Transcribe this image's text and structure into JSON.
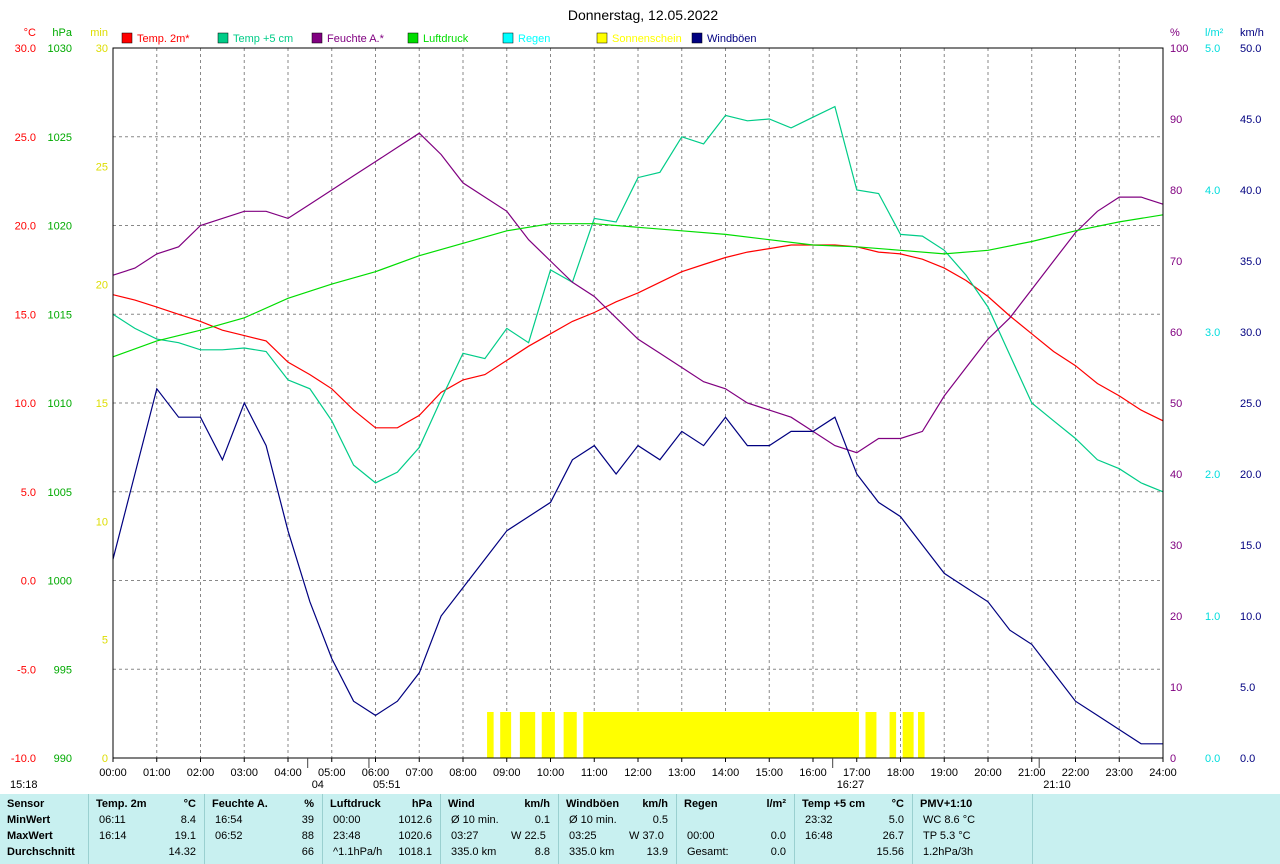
{
  "chart_data": {
    "type": "line",
    "title": "Donnerstag, 12.05.2022",
    "x_ticks": [
      "00:00",
      "01:00",
      "02:00",
      "03:00",
      "04:00",
      "05:00",
      "06:00",
      "07:00",
      "08:00",
      "09:00",
      "10:00",
      "11:00",
      "12:00",
      "13:00",
      "14:00",
      "15:00",
      "16:00",
      "17:00",
      "18:00",
      "19:00",
      "20:00",
      "21:00",
      "22:00",
      "23:00",
      "24:00"
    ],
    "axes": {
      "temp": {
        "unit": "°C",
        "range": [
          -10,
          30
        ],
        "ticks": [
          "30.0",
          "25.0",
          "20.0",
          "15.0",
          "10.0",
          "5.0",
          "0.0",
          "-5.0",
          "-10.0"
        ],
        "color": "#ff0000"
      },
      "pressure": {
        "unit": "hPa",
        "range": [
          990,
          1030
        ],
        "ticks": [
          "1030",
          "1025",
          "1020",
          "1015",
          "1010",
          "1005",
          "1000",
          "995",
          "990"
        ],
        "color": "#00aa00"
      },
      "sun_minutes": {
        "unit": "min",
        "range": [
          0,
          30
        ],
        "ticks": [
          "30",
          "25",
          "20",
          "15",
          "10",
          "5",
          "0"
        ],
        "color": "#dddd00"
      },
      "humidity": {
        "unit": "%",
        "range": [
          0,
          100
        ],
        "ticks": [
          "100",
          "90",
          "80",
          "70",
          "60",
          "50",
          "40",
          "30",
          "20",
          "10",
          "0"
        ],
        "color": "#800080"
      },
      "rain": {
        "unit": "l/m²",
        "range": [
          0,
          5
        ],
        "ticks": [
          "5.0",
          "4.0",
          "3.0",
          "2.0",
          "1.0",
          "0.0"
        ],
        "color": "#00dddd"
      },
      "wind": {
        "unit": "km/h",
        "range": [
          0,
          50
        ],
        "ticks": [
          "50.0",
          "45.0",
          "40.0",
          "35.0",
          "30.0",
          "25.0",
          "20.0",
          "15.0",
          "10.0",
          "5.0",
          "0.0"
        ],
        "color": "#000080"
      }
    },
    "legend": [
      {
        "name": "Temp. 2m*",
        "color": "#ff0000"
      },
      {
        "name": "Temp +5 cm",
        "color": "#00cc88"
      },
      {
        "name": "Feuchte A.*",
        "color": "#800080"
      },
      {
        "name": "Luftdruck",
        "color": "#00dd00"
      },
      {
        "name": "Regen",
        "color": "#00ffff"
      },
      {
        "name": "Sonnenschein",
        "color": "#ffff00"
      },
      {
        "name": "Windböen",
        "color": "#000080"
      }
    ],
    "series": [
      {
        "name": "Temp. 2m*",
        "axis": "temp",
        "x": [
          0,
          0.5,
          1,
          1.5,
          2,
          2.5,
          3,
          3.5,
          4,
          4.5,
          5,
          5.5,
          6,
          6.5,
          7,
          7.5,
          8,
          8.5,
          9,
          9.5,
          10,
          10.5,
          11,
          11.5,
          12,
          12.5,
          13,
          13.5,
          14,
          14.5,
          15,
          15.5,
          16,
          16.5,
          17,
          17.5,
          18,
          18.5,
          19,
          19.5,
          20,
          20.5,
          21,
          21.5,
          22,
          22.5,
          23,
          23.5,
          24
        ],
        "y": [
          16.1,
          15.8,
          15.4,
          15.0,
          14.6,
          14.1,
          13.8,
          13.5,
          12.3,
          11.6,
          10.8,
          9.6,
          8.6,
          8.6,
          9.3,
          10.6,
          11.3,
          11.6,
          12.4,
          13.2,
          13.9,
          14.6,
          15.1,
          15.7,
          16.2,
          16.8,
          17.4,
          17.8,
          18.2,
          18.5,
          18.7,
          18.9,
          18.9,
          18.9,
          18.8,
          18.5,
          18.4,
          18.1,
          17.6,
          16.9,
          16.0,
          14.9,
          13.9,
          12.9,
          12.1,
          11.1,
          10.4,
          9.6,
          9.0
        ]
      },
      {
        "name": "Temp +5 cm",
        "axis": "temp",
        "x": [
          0,
          0.5,
          1,
          1.5,
          2,
          2.5,
          3,
          3.5,
          4,
          4.5,
          5,
          5.5,
          6,
          6.5,
          7,
          7.5,
          8,
          8.5,
          9,
          9.5,
          10,
          10.5,
          11,
          11.5,
          12,
          12.5,
          13,
          13.5,
          14,
          14.5,
          15,
          15.5,
          16,
          16.5,
          17,
          17.5,
          18,
          18.5,
          19,
          19.5,
          20,
          20.5,
          21,
          21.5,
          22,
          22.5,
          23,
          23.5,
          24
        ],
        "y": [
          15.0,
          14.2,
          13.6,
          13.4,
          13.0,
          13.0,
          13.1,
          12.9,
          11.3,
          10.8,
          9.0,
          6.5,
          5.5,
          6.1,
          7.5,
          10.2,
          12.8,
          12.5,
          14.2,
          13.4,
          17.5,
          16.8,
          20.4,
          20.2,
          22.7,
          23.0,
          25.0,
          24.6,
          26.2,
          25.9,
          26.0,
          25.5,
          26.1,
          26.7,
          22.0,
          21.8,
          19.5,
          19.4,
          18.6,
          17.2,
          15.4,
          12.7,
          10.0,
          9.0,
          8.0,
          6.8,
          6.3,
          5.5,
          5.0
        ]
      },
      {
        "name": "Feuchte A.*",
        "axis": "humidity",
        "x": [
          0,
          0.5,
          1,
          1.5,
          2,
          2.5,
          3,
          3.5,
          4,
          4.5,
          5,
          5.5,
          6,
          6.5,
          7,
          7.5,
          8,
          8.5,
          9,
          9.5,
          10,
          10.5,
          11,
          11.5,
          12,
          12.5,
          13,
          13.5,
          14,
          14.5,
          15,
          15.5,
          16,
          16.5,
          17,
          17.5,
          18,
          18.5,
          19,
          19.5,
          20,
          20.5,
          21,
          21.5,
          22,
          22.5,
          23,
          23.5,
          24
        ],
        "y": [
          68,
          69,
          71,
          72,
          75,
          76,
          77,
          77,
          76,
          78,
          80,
          82,
          84,
          86,
          88,
          85,
          81,
          79,
          77,
          73,
          70,
          67,
          65,
          62,
          59,
          57,
          55,
          53,
          52,
          50,
          49,
          48,
          46,
          44,
          43,
          45,
          45,
          46,
          51,
          55,
          59,
          62,
          66,
          70,
          74,
          77,
          79,
          79,
          78
        ]
      },
      {
        "name": "Luftdruck",
        "axis": "pressure",
        "x": [
          0,
          1,
          2,
          3,
          4,
          5,
          6,
          7,
          8,
          9,
          10,
          11,
          12,
          13,
          14,
          15,
          16,
          17,
          18,
          19,
          20,
          21,
          22,
          23,
          24
        ],
        "y": [
          1012.6,
          1013.5,
          1014.1,
          1014.8,
          1015.9,
          1016.7,
          1017.4,
          1018.3,
          1019.0,
          1019.7,
          1020.1,
          1020.1,
          1019.9,
          1019.7,
          1019.5,
          1019.2,
          1018.9,
          1018.8,
          1018.6,
          1018.4,
          1018.6,
          1019.1,
          1019.7,
          1020.2,
          1020.6
        ]
      },
      {
        "name": "Windböen",
        "axis": "wind",
        "x": [
          0,
          0.5,
          1,
          1.5,
          2,
          2.5,
          3,
          3.5,
          4,
          4.5,
          5,
          5.5,
          6,
          6.5,
          7,
          7.5,
          8,
          8.5,
          9,
          9.5,
          10,
          10.5,
          11,
          11.5,
          12,
          12.5,
          13,
          13.5,
          14,
          14.5,
          15,
          15.5,
          16,
          16.5,
          17,
          17.5,
          18,
          18.5,
          19,
          19.5,
          20,
          20.5,
          21,
          21.5,
          22,
          22.5,
          23,
          23.5,
          24
        ],
        "y": [
          14,
          20,
          26,
          24,
          24,
          21,
          25,
          22,
          16,
          11,
          7,
          4,
          3,
          4,
          6,
          10,
          12,
          14,
          16,
          17,
          18,
          21,
          22,
          20,
          22,
          21,
          23,
          22,
          24,
          22,
          22,
          23,
          23,
          24,
          20,
          18,
          17,
          15,
          13,
          12,
          11,
          9,
          8,
          6,
          4,
          3,
          2,
          1,
          1
        ]
      }
    ],
    "sunshine_intervals": [
      [
        8.55,
        8.7
      ],
      [
        8.85,
        9.1
      ],
      [
        9.3,
        9.65
      ],
      [
        9.8,
        10.1
      ],
      [
        10.3,
        10.6
      ],
      [
        10.75,
        17.05
      ],
      [
        17.2,
        17.45
      ],
      [
        17.75,
        17.9
      ],
      [
        18.05,
        18.3
      ],
      [
        18.4,
        18.55
      ]
    ],
    "markers": [
      {
        "label": "04",
        "x": 4.45
      },
      {
        "label": "05:51",
        "x": 5.85
      },
      {
        "label": "16:27",
        "x": 16.45
      },
      {
        "label": "21:10",
        "x": 21.17
      }
    ],
    "left_time_label": "15:18",
    "grid": true,
    "legend_position": "top"
  },
  "stats": {
    "columns": [
      {
        "title": "Sensor",
        "unit": "",
        "rows": [
          {
            "a": "MinWert",
            "b": "",
            "c": ""
          },
          {
            "a": "MaxWert",
            "b": "",
            "c": ""
          },
          {
            "a": "Durchschnitt",
            "b": "",
            "c": ""
          }
        ]
      },
      {
        "title": "Temp. 2m",
        "unit": "°C",
        "rows": [
          {
            "a": "06:11",
            "b": "",
            "c": "8.4"
          },
          {
            "a": "16:14",
            "b": "",
            "c": "19.1"
          },
          {
            "a": "",
            "b": "",
            "c": "14.32"
          }
        ]
      },
      {
        "title": "Feuchte A.",
        "unit": "%",
        "rows": [
          {
            "a": "16:54",
            "b": "",
            "c": "39"
          },
          {
            "a": "06:52",
            "b": "",
            "c": "88"
          },
          {
            "a": "",
            "b": "",
            "c": "66"
          }
        ]
      },
      {
        "title": "Luftdruck",
        "unit": "hPa",
        "rows": [
          {
            "a": "00:00",
            "b": "",
            "c": "1012.6"
          },
          {
            "a": "23:48",
            "b": "",
            "c": "1020.6"
          },
          {
            "a": "^1.1hPa/h",
            "b": "",
            "c": "1018.1"
          }
        ]
      },
      {
        "title": "Wind",
        "unit": "km/h",
        "rows": [
          {
            "a": "Ø 10 min.",
            "b": "",
            "c": "0.1"
          },
          {
            "a": "03:27",
            "b": "W 22.5",
            "c": ""
          },
          {
            "a": "335.0 km",
            "b": "",
            "c": "8.8"
          }
        ]
      },
      {
        "title": "Windböen",
        "unit": "km/h",
        "rows": [
          {
            "a": "Ø 10 min.",
            "b": "",
            "c": "0.5"
          },
          {
            "a": "03:25",
            "b": "W 37.0",
            "c": ""
          },
          {
            "a": "335.0 km",
            "b": "",
            "c": "13.9"
          }
        ]
      },
      {
        "title": "Regen",
        "unit": "l/m²",
        "rows": [
          {
            "a": "",
            "b": "",
            "c": ""
          },
          {
            "a": "00:00",
            "b": "",
            "c": "0.0"
          },
          {
            "a": "Gesamt:",
            "b": "",
            "c": "0.0"
          }
        ]
      },
      {
        "title": "Temp +5 cm",
        "unit": "°C",
        "rows": [
          {
            "a": "23:32",
            "b": "",
            "c": "5.0"
          },
          {
            "a": "16:48",
            "b": "",
            "c": "26.7"
          },
          {
            "a": "",
            "b": "",
            "c": "15.56"
          }
        ]
      },
      {
        "title": "PMV+1:10",
        "unit": "",
        "rows": [
          {
            "a": "WC 8.6 °C",
            "b": "",
            "c": ""
          },
          {
            "a": "TP 5.3 °C",
            "b": "",
            "c": ""
          },
          {
            "a": "1.2hPa/3h",
            "b": "",
            "c": ""
          }
        ]
      }
    ]
  }
}
